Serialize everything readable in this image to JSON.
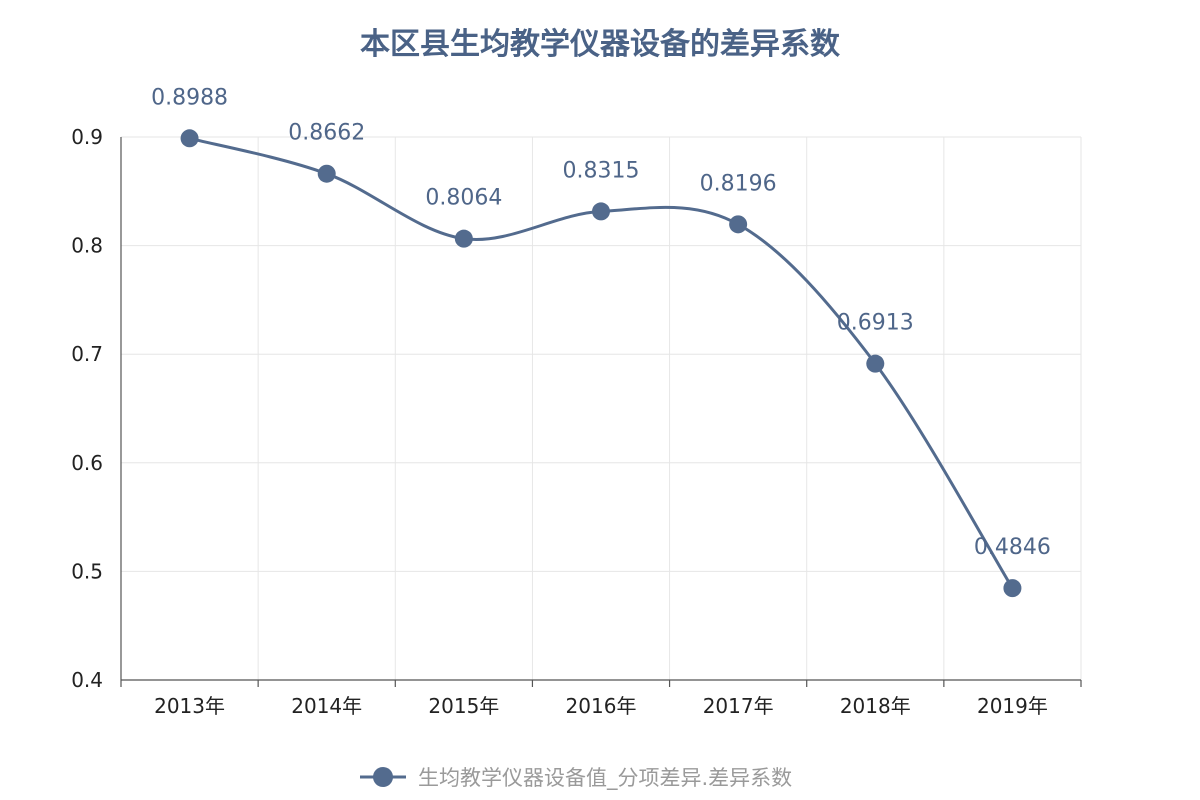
{
  "chart_data": {
    "type": "line",
    "title": "本区县生均教学仪器设备的差异系数",
    "categories": [
      "2013年",
      "2014年",
      "2015年",
      "2016年",
      "2017年",
      "2018年",
      "2019年"
    ],
    "series": [
      {
        "name": "生均教学仪器设备值_分项差异.差异系数",
        "values": [
          0.8988,
          0.8662,
          0.8064,
          0.8315,
          0.8196,
          0.6913,
          0.4846
        ],
        "labels": [
          "0.8988",
          "0.8662",
          "0.8064",
          "0.8315",
          "0.8196",
          "0.6913",
          "0.4846"
        ],
        "color": "#536b8e"
      }
    ],
    "ylim": [
      0.4,
      0.9
    ],
    "yticks": [
      "0.4",
      "0.5",
      "0.6",
      "0.7",
      "0.8",
      "0.9"
    ],
    "grid": true,
    "legend": "bottom-center",
    "smooth": true
  }
}
